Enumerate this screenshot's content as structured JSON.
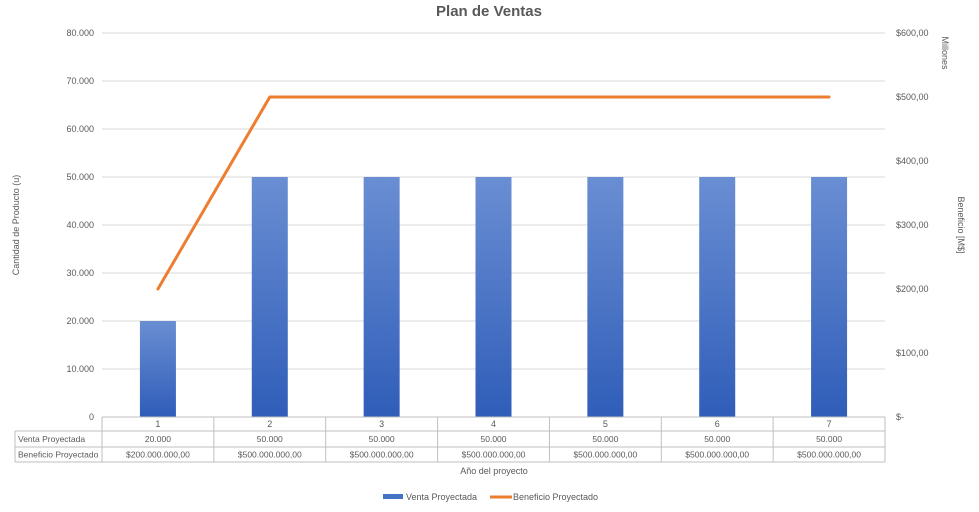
{
  "chart_data": {
    "type": "bar",
    "title": "Plan de Ventas",
    "xlabel": "Año del proyecto",
    "ylabel_left": "Cantidad de Producto (u)",
    "ylabel_right": "Beneficio [M$]",
    "right_unit_label": "Millones",
    "categories": [
      "1",
      "2",
      "3",
      "4",
      "5",
      "6",
      "7"
    ],
    "y_left_ticks": [
      "0",
      "10.000",
      "20.000",
      "30.000",
      "40.000",
      "50.000",
      "60.000",
      "70.000",
      "80.000"
    ],
    "y_left_range": [
      0,
      80000
    ],
    "y_right_ticks": [
      "$-",
      "$100,00",
      "$200,00",
      "$300,00",
      "$400,00",
      "$500,00",
      "$600,00"
    ],
    "y_right_range": [
      0,
      600
    ],
    "grid": true,
    "legend_position": "bottom",
    "series": [
      {
        "name": "Venta Proyectada",
        "type": "bar",
        "axis": "left",
        "color": "#4472C4",
        "values": [
          20000,
          50000,
          50000,
          50000,
          50000,
          50000,
          50000
        ],
        "table_values": [
          "20.000",
          "50.000",
          "50.000",
          "50.000",
          "50.000",
          "50.000",
          "50.000"
        ]
      },
      {
        "name": "Beneficio Proyectado",
        "type": "line",
        "axis": "right",
        "color": "#ED7D31",
        "values": [
          200,
          500,
          500,
          500,
          500,
          500,
          500
        ],
        "table_values": [
          "$200.000.000,00",
          "$500.000.000,00",
          "$500.000.000,00",
          "$500.000.000,00",
          "$500.000.000,00",
          "$500.000.000,00",
          "$500.000.000,00"
        ]
      }
    ]
  }
}
